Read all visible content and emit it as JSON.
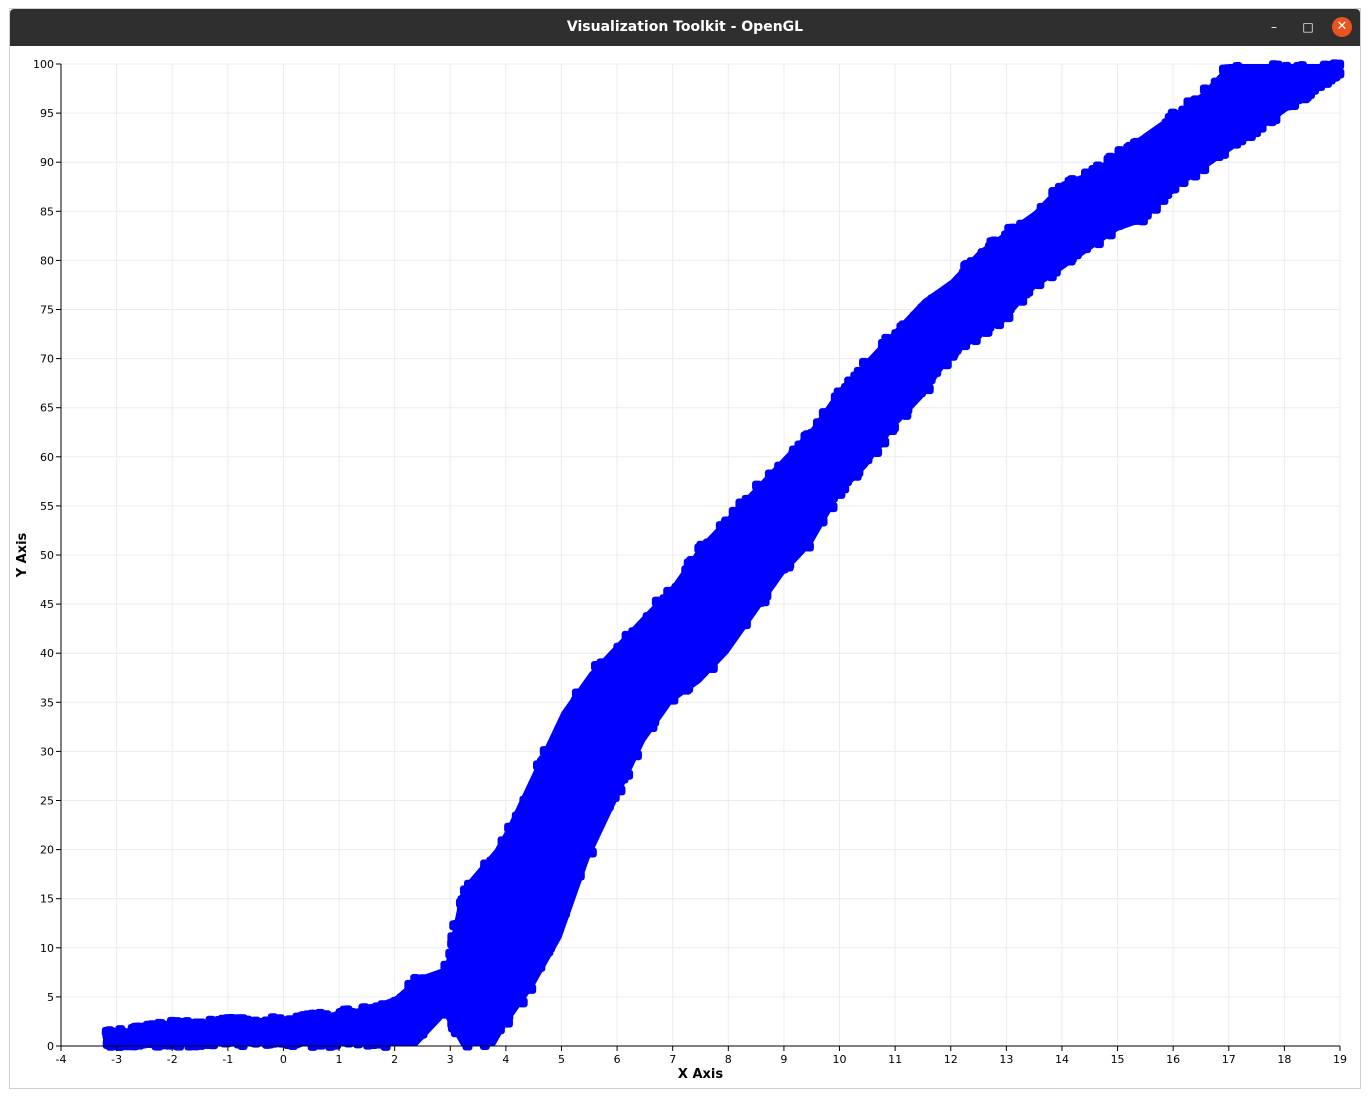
{
  "window": {
    "title": "Visualization Toolkit - OpenGL",
    "minimize_glyph": "–",
    "maximize_glyph": "□",
    "close_glyph": "✕"
  },
  "chart_data": {
    "type": "scatter",
    "title": "",
    "xlabel": "X Axis",
    "ylabel": "Y Axis",
    "xlim": [
      -4,
      19
    ],
    "ylim": [
      0,
      100
    ],
    "xticks": [
      -4,
      -3,
      -2,
      -1,
      0,
      1,
      2,
      3,
      4,
      5,
      6,
      7,
      8,
      9,
      10,
      11,
      12,
      13,
      14,
      15,
      16,
      17,
      18,
      19
    ],
    "yticks": [
      0,
      5,
      10,
      15,
      20,
      25,
      30,
      35,
      40,
      45,
      50,
      55,
      60,
      65,
      70,
      75,
      80,
      85,
      90,
      95,
      100
    ],
    "grid": true,
    "marker_color": "#0000ff",
    "band_description_points": {
      "x": [
        -3.2,
        -2.5,
        -2.0,
        -1.5,
        -1.0,
        -0.5,
        0.0,
        0.5,
        1.0,
        1.5,
        2.0,
        2.4,
        2.9,
        3.2,
        3.5,
        3.8,
        4.0,
        4.5,
        5.0,
        5.5,
        6.0,
        6.5,
        7.0,
        7.5,
        8.0,
        8.5,
        9.0,
        9.5,
        10.0,
        10.5,
        11.0,
        11.5,
        12.0,
        12.5,
        13.0,
        13.5,
        14.0,
        14.5,
        15.0,
        15.5,
        16.0,
        16.5,
        17.0,
        17.5,
        18.0,
        18.5,
        19.0
      ],
      "y_low": [
        0,
        0,
        0,
        0,
        0,
        0,
        0,
        0,
        0,
        0,
        0,
        0,
        3,
        0,
        0,
        0,
        2,
        6,
        11,
        19,
        25,
        31,
        35,
        37,
        40,
        44,
        48,
        51,
        56,
        59,
        63,
        66,
        70,
        72,
        74,
        77,
        79,
        81,
        83,
        84,
        87,
        89,
        91,
        93,
        95,
        97,
        99
      ],
      "y_high": [
        1.5,
        2,
        2.5,
        2.5,
        2.8,
        2.8,
        3,
        3.2,
        3.5,
        4,
        5,
        7,
        8,
        16,
        18,
        20,
        22,
        28,
        34,
        38,
        41,
        44,
        47,
        51,
        54,
        57,
        60,
        63,
        67,
        70,
        73,
        76,
        78,
        81,
        83,
        85,
        88,
        89,
        91,
        93,
        95,
        97,
        100,
        100,
        100,
        100,
        100
      ]
    }
  }
}
